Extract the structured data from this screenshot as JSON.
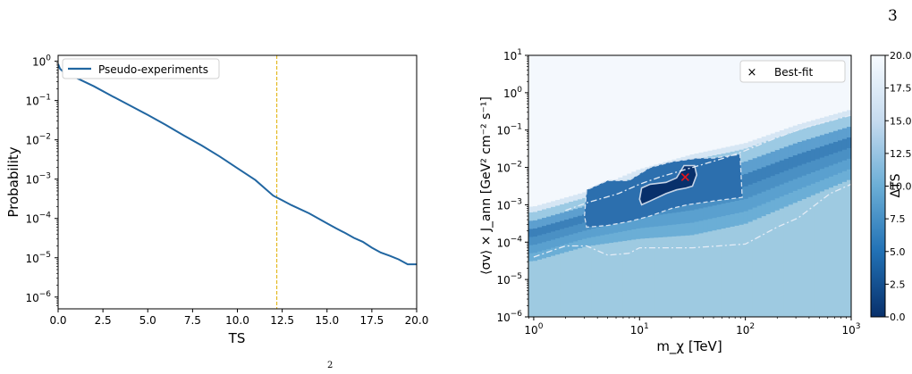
{
  "page": {
    "number": "3",
    "footer_fragment": "2"
  },
  "colors": {
    "line": "#2166a1",
    "vline": "#e0b000",
    "best_fit": "#e8151b"
  },
  "chart_data": [
    {
      "type": "line",
      "title": "",
      "xlabel": "TS",
      "ylabel": "Probability",
      "xlim": [
        0,
        20
      ],
      "ylim_log10": [
        -6.3,
        0.15
      ],
      "yscale": "log",
      "xticks": [
        "0.0",
        "2.5",
        "5.0",
        "7.5",
        "10.0",
        "12.5",
        "15.0",
        "17.5",
        "20.0"
      ],
      "yticks": [
        {
          "base": "10",
          "exp": "0"
        },
        {
          "base": "10",
          "exp": "−1"
        },
        {
          "base": "10",
          "exp": "−2"
        },
        {
          "base": "10",
          "exp": "−3"
        },
        {
          "base": "10",
          "exp": "−4"
        },
        {
          "base": "10",
          "exp": "−5"
        },
        {
          "base": "10",
          "exp": "−6"
        }
      ],
      "legend": {
        "placement": "top-left",
        "entries": [
          "Pseudo-experiments"
        ]
      },
      "vline_x": 12.2,
      "series": [
        {
          "name": "Pseudo-experiments",
          "x": [
            0,
            0.1,
            0.3,
            0.6,
            1.0,
            2.0,
            3.0,
            4.0,
            5.0,
            6.0,
            7.0,
            8.0,
            9.0,
            10.0,
            11.0,
            12.0,
            12.5,
            13.0,
            14.0,
            15.0,
            15.5,
            16.0,
            16.5,
            17.0,
            17.5,
            18.0,
            18.5,
            19.0,
            19.5,
            20.0
          ],
          "y": [
            0.85,
            0.65,
            0.53,
            0.45,
            0.38,
            0.23,
            0.13,
            0.075,
            0.043,
            0.024,
            0.013,
            0.0072,
            0.0038,
            0.0019,
            0.00095,
            0.00038,
            0.00029,
            0.00022,
            0.000135,
            7.5e-05,
            5.6e-05,
            4.3e-05,
            3.2e-05,
            2.55e-05,
            1.8e-05,
            1.35e-05,
            1.12e-05,
            9.1e-06,
            6.8e-06,
            6.8e-06
          ]
        }
      ]
    },
    {
      "type": "heatmap",
      "title": "",
      "xlabel": "m_χ [TeV]",
      "ylabel": "⟨σv⟩ × J_ann [GeV² cm⁻² s⁻¹]",
      "xscale": "log",
      "yscale": "log",
      "xlim_log10": [
        -0.05,
        3.0
      ],
      "ylim_log10": [
        -6,
        1
      ],
      "xticks": [
        {
          "base": "10",
          "exp": "0"
        },
        {
          "base": "10",
          "exp": "1"
        },
        {
          "base": "10",
          "exp": "2"
        },
        {
          "base": "10",
          "exp": "3"
        }
      ],
      "yticks": [
        {
          "base": "10",
          "exp": "1"
        },
        {
          "base": "10",
          "exp": "0"
        },
        {
          "base": "10",
          "exp": "−1"
        },
        {
          "base": "10",
          "exp": "−2"
        },
        {
          "base": "10",
          "exp": "−3"
        },
        {
          "base": "10",
          "exp": "−4"
        },
        {
          "base": "10",
          "exp": "−5"
        },
        {
          "base": "10",
          "exp": "−6"
        }
      ],
      "colorbar": {
        "label": "ΔTS",
        "range": [
          0,
          20
        ],
        "ticks": [
          "0.0",
          "2.5",
          "5.0",
          "7.5",
          "10.0",
          "12.5",
          "15.0",
          "17.5",
          "20.0"
        ]
      },
      "legend": {
        "placement": "top-right",
        "entries": [
          "Best-fit"
        ]
      },
      "best_fit": {
        "m_chi_TeV": 27,
        "sigma_v_J": 0.0055
      },
      "sensitivity_edge": {
        "log10_m": [
          0.0,
          0.5,
          1.0,
          1.5,
          2.0,
          2.5,
          3.0
        ],
        "log10_sv": [
          -3.2,
          -2.8,
          -2.2,
          -1.8,
          -1.5,
          -1.0,
          -0.6
        ]
      },
      "floor_edge": {
        "log10_m": [
          0.0,
          0.5,
          1.0,
          1.5,
          2.0,
          2.5,
          3.0
        ],
        "log10_sv": [
          -4.5,
          -4.1,
          -3.9,
          -3.8,
          -3.5,
          -2.9,
          -2.3
        ]
      },
      "contours": [
        {
          "style": "solid",
          "log10_m": [
            1.0,
            1.02,
            1.1,
            1.25,
            1.35,
            1.42,
            1.52,
            1.54,
            1.5,
            1.44,
            1.35,
            1.25,
            1.1,
            1.02
          ],
          "log10_sv": [
            -2.85,
            -2.55,
            -2.45,
            -2.4,
            -2.28,
            -1.95,
            -1.95,
            -2.2,
            -2.5,
            -2.55,
            -2.6,
            -2.7,
            -2.9,
            -3.0
          ]
        },
        {
          "style": "dashed",
          "log10_m": [
            0.48,
            0.5,
            0.7,
            0.9,
            1.1,
            1.3,
            1.55,
            1.7,
            1.95,
            1.97,
            1.7,
            1.45,
            1.3,
            1.1,
            0.9,
            0.7,
            0.5
          ],
          "log10_sv": [
            -3.3,
            -2.6,
            -2.35,
            -2.35,
            -2.0,
            -1.85,
            -1.75,
            -1.75,
            -1.65,
            -2.8,
            -2.9,
            -3.0,
            -3.1,
            -3.3,
            -3.45,
            -3.55,
            -3.6
          ]
        },
        {
          "style": "dashdot",
          "log10_m": [
            0.0,
            0.3,
            0.5,
            0.7,
            0.9,
            1.0,
            1.5,
            2.0,
            2.3,
            2.5,
            2.8,
            3.0
          ],
          "log10_sv": [
            -4.4,
            -4.1,
            -4.1,
            -4.35,
            -4.3,
            -4.15,
            -4.15,
            -4.05,
            -3.6,
            -3.35,
            -2.7,
            -2.45
          ]
        },
        {
          "style": "dashdot",
          "log10_m": [
            0.3,
            0.5,
            0.8,
            1.0,
            1.2,
            1.5,
            1.8,
            2.0,
            2.3,
            2.6,
            2.8,
            3.0
          ],
          "log10_sv": [
            -3.15,
            -2.95,
            -2.7,
            -2.45,
            -2.25,
            -2.0,
            -1.75,
            -1.55,
            -1.2,
            -0.9,
            -0.75,
            -0.6
          ]
        }
      ]
    }
  ]
}
